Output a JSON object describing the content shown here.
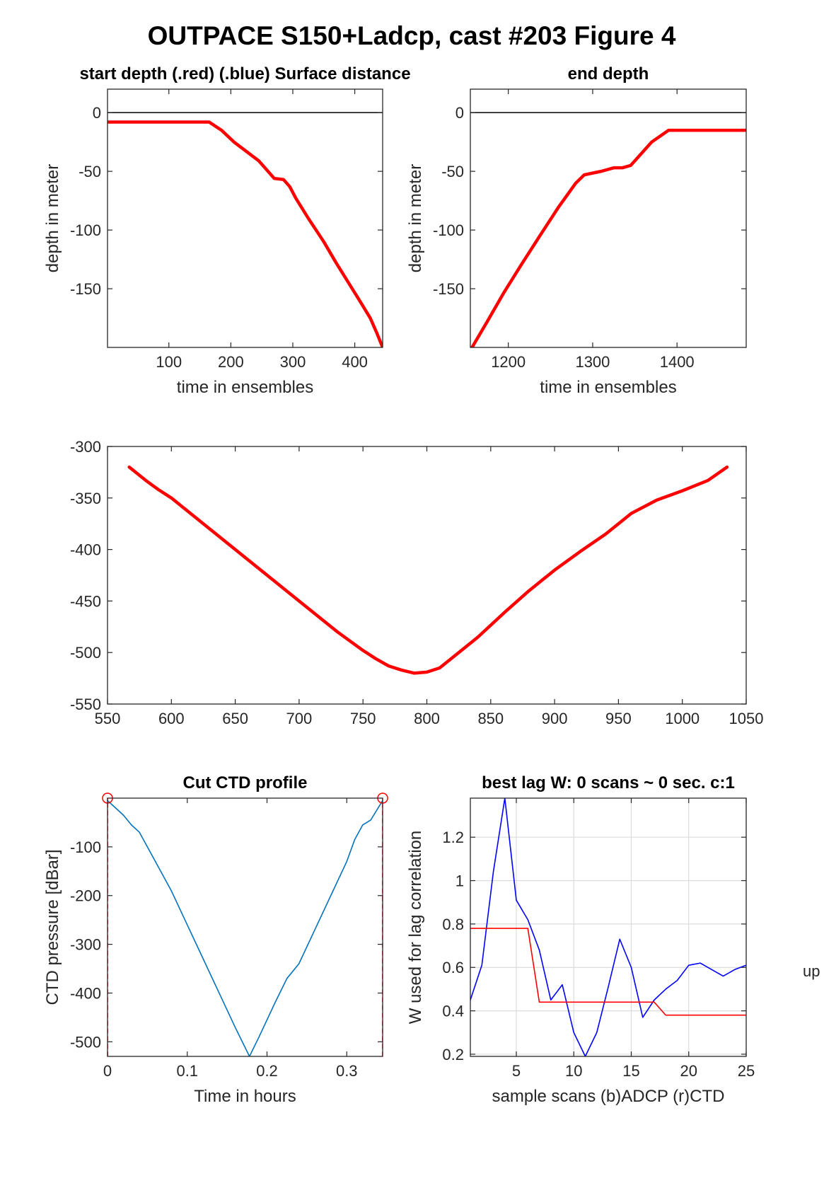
{
  "figure_title": "OUTPACE S150+Ladcp, cast #203   Figure 4",
  "side_label": "up",
  "chart_data": [
    {
      "id": "start",
      "type": "line",
      "title": "start depth (.red) (.blue) Surface distance",
      "xlabel": "time in ensembles",
      "ylabel": "depth in meter",
      "xlim": [
        1,
        445
      ],
      "ylim": [
        -200,
        20
      ],
      "xticks": [
        100,
        200,
        300,
        400
      ],
      "yticks": [
        0,
        -50,
        -100,
        -150
      ],
      "hline": 0,
      "grid": false,
      "series": [
        {
          "color": "#ff0000",
          "x": [
            1,
            165,
            185,
            205,
            225,
            245,
            260,
            270,
            285,
            295,
            305,
            325,
            350,
            370,
            390,
            410,
            425,
            435,
            445
          ],
          "y": [
            -8,
            -8,
            -15,
            -25,
            -33,
            -41,
            -50,
            -56,
            -57,
            -63,
            -73,
            -90,
            -110,
            -128,
            -145,
            -162,
            -175,
            -187,
            -200
          ]
        }
      ]
    },
    {
      "id": "end",
      "type": "line",
      "title": "end depth",
      "xlabel": "time in ensembles",
      "ylabel": "depth in meter",
      "xlim": [
        1155,
        1482
      ],
      "ylim": [
        -200,
        20
      ],
      "xticks": [
        1200,
        1300,
        1400
      ],
      "yticks": [
        0,
        -50,
        -100,
        -150
      ],
      "hline": 0,
      "grid": false,
      "series": [
        {
          "color": "#ff0000",
          "x": [
            1157,
            1175,
            1195,
            1215,
            1240,
            1260,
            1280,
            1290,
            1310,
            1325,
            1335,
            1345,
            1355,
            1370,
            1390,
            1410,
            1440,
            1482
          ],
          "y": [
            -200,
            -178,
            -153,
            -130,
            -102,
            -80,
            -60,
            -53,
            -50,
            -47,
            -47,
            -45,
            -37,
            -25,
            -15,
            -15,
            -15,
            -15
          ]
        }
      ]
    },
    {
      "id": "middle",
      "type": "line",
      "title": "",
      "xlabel": "",
      "ylabel": "",
      "xlim": [
        550,
        1050
      ],
      "ylim": [
        -550,
        -300
      ],
      "xticks": [
        550,
        600,
        650,
        700,
        750,
        800,
        850,
        900,
        950,
        1000,
        1050
      ],
      "yticks": [
        -300,
        -350,
        -400,
        -450,
        -500,
        -550
      ],
      "grid": false,
      "series": [
        {
          "color": "#ff0000",
          "x": [
            567,
            580,
            590,
            600,
            615,
            630,
            650,
            670,
            690,
            710,
            730,
            750,
            760,
            770,
            780,
            790,
            800,
            810,
            820,
            840,
            860,
            880,
            900,
            920,
            940,
            950,
            960,
            980,
            1000,
            1020,
            1035
          ],
          "y": [
            -320,
            -333,
            -342,
            -350,
            -365,
            -380,
            -400,
            -420,
            -440,
            -460,
            -480,
            -498,
            -506,
            -513,
            -517,
            -520,
            -519,
            -515,
            -505,
            -485,
            -462,
            -440,
            -420,
            -402,
            -385,
            -375,
            -365,
            -352,
            -343,
            -333,
            -320
          ]
        }
      ]
    },
    {
      "id": "ctd",
      "type": "line",
      "title": "Cut CTD profile",
      "xlabel": "Time in hours",
      "ylabel": "CTD pressure [dBar]",
      "xlim": [
        0,
        0.345
      ],
      "ylim": [
        -530,
        0
      ],
      "xticks": [
        0,
        0.1,
        0.2,
        0.3
      ],
      "xticklabels": [
        "0",
        "0.1",
        "0.2",
        "0.3"
      ],
      "yticks": [
        -100,
        -200,
        -300,
        -400,
        -500
      ],
      "grid": false,
      "series": [
        {
          "color": "#0072bd",
          "x": [
            0,
            0.01,
            0.02,
            0.03,
            0.04,
            0.06,
            0.08,
            0.1,
            0.12,
            0.14,
            0.16,
            0.178,
            0.19,
            0.21,
            0.225,
            0.24,
            0.26,
            0.28,
            0.3,
            0.31,
            0.32,
            0.33,
            0.345
          ],
          "y": [
            -5,
            -20,
            -35,
            -55,
            -70,
            -130,
            -190,
            -260,
            -330,
            -400,
            -470,
            -530,
            -490,
            -420,
            -370,
            -340,
            -270,
            -200,
            -130,
            -85,
            -55,
            -45,
            -5
          ]
        },
        {
          "color": "#ff0000",
          "x": [
            0,
            0
          ],
          "y": [
            -530,
            0
          ]
        },
        {
          "color": "#ff0000",
          "x": [
            0.345,
            0.345
          ],
          "y": [
            -530,
            0
          ]
        }
      ],
      "markers": [
        {
          "x": 0,
          "y": 0
        },
        {
          "x": 0.345,
          "y": 0
        }
      ]
    },
    {
      "id": "lag",
      "type": "line",
      "title": "best lag W: 0 scans ~ 0 sec.  c:1",
      "xlabel": "sample scans (b)ADCP (r)CTD",
      "ylabel": "W used for lag correlation",
      "xlim": [
        1,
        25
      ],
      "ylim": [
        0.19,
        1.38
      ],
      "xticks": [
        5,
        10,
        15,
        20,
        25
      ],
      "yticks": [
        0.2,
        0.4,
        0.6,
        0.8,
        1,
        1.2
      ],
      "yticklabels": [
        "0.2",
        "0.4",
        "0.6",
        "0.8",
        "1",
        "1.2"
      ],
      "grid": true,
      "series": [
        {
          "color": "#0000ff",
          "x": [
            1,
            2,
            3,
            4,
            5,
            6,
            7,
            8,
            9,
            10,
            11,
            12,
            13,
            14,
            15,
            16,
            17,
            18,
            19,
            20,
            21,
            22,
            23,
            24,
            25
          ],
          "y": [
            0.45,
            0.61,
            1.04,
            1.38,
            0.91,
            0.82,
            0.68,
            0.45,
            0.52,
            0.3,
            0.19,
            0.3,
            0.51,
            0.73,
            0.6,
            0.37,
            0.45,
            0.5,
            0.54,
            0.61,
            0.62,
            0.59,
            0.56,
            0.59,
            0.61
          ]
        },
        {
          "color": "#ff0000",
          "x": [
            1,
            2,
            3,
            4,
            5,
            6,
            7,
            8,
            9,
            10,
            11,
            12,
            13,
            14,
            15,
            16,
            17,
            18,
            19,
            20,
            21,
            22,
            23,
            24,
            25
          ],
          "y": [
            0.78,
            0.78,
            0.78,
            0.78,
            0.78,
            0.78,
            0.44,
            0.44,
            0.44,
            0.44,
            0.44,
            0.44,
            0.44,
            0.44,
            0.44,
            0.44,
            0.44,
            0.38,
            0.38,
            0.38,
            0.38,
            0.38,
            0.38,
            0.38,
            0.38
          ]
        }
      ]
    }
  ]
}
